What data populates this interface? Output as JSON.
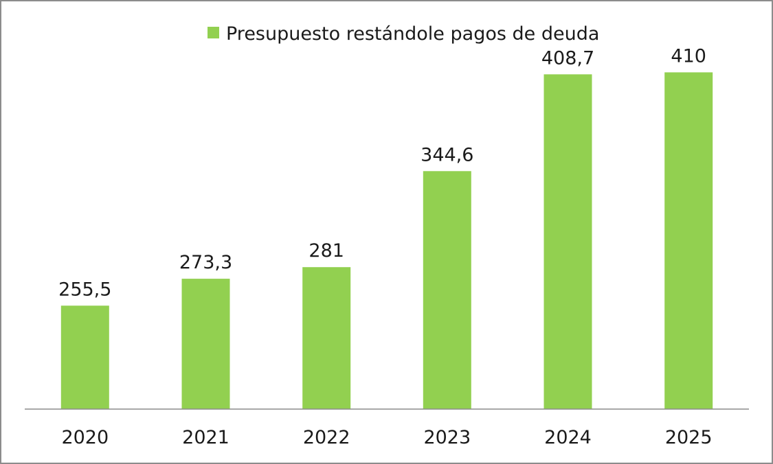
{
  "chart_data": {
    "type": "bar",
    "categories": [
      "2020",
      "2021",
      "2022",
      "2023",
      "2024",
      "2025"
    ],
    "series": [
      {
        "name": "Presupuesto restándole pagos de deuda",
        "values": [
          255.5,
          273.3,
          281,
          344.6,
          408.7,
          410
        ],
        "labels": [
          "255,5",
          "273,3",
          "281",
          "344,6",
          "408,7",
          "410"
        ]
      }
    ],
    "title": "",
    "xlabel": "",
    "ylabel": "",
    "ylim": [
      187,
      437
    ],
    "grid": false,
    "legend_position": "top-center",
    "colors": {
      "bar": "#92d050",
      "axis": "#8c8c8c",
      "border": "#8c8c8c",
      "text": "#1a1a1a"
    }
  }
}
